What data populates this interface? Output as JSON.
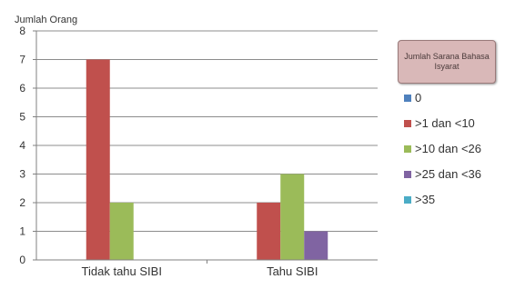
{
  "chart_data": {
    "type": "bar",
    "ylabel": "Jumlah Orang",
    "ylim": [
      0,
      8
    ],
    "yticks": [
      "0",
      "1",
      "2",
      "3",
      "4",
      "5",
      "6",
      "7",
      "8"
    ],
    "categories": [
      "Tidak tahu SIBI",
      "Tahu SIBI"
    ],
    "legend_title": "Jumlah Sarana Bahasa Isyarat",
    "legend_position": "right",
    "grid": true,
    "series": [
      {
        "name": "0",
        "color": "#4f81bd",
        "values": [
          0,
          0
        ]
      },
      {
        "name": ">1 dan <10",
        "color": "#c0504d",
        "values": [
          7,
          2
        ]
      },
      {
        "name": ">10 dan <26",
        "color": "#9bbb59",
        "values": [
          2,
          3
        ]
      },
      {
        "name": ">25 dan <36",
        "color": "#8064a2",
        "values": [
          0,
          1
        ]
      },
      {
        "name": ">35",
        "color": "#4bacc6",
        "values": [
          0,
          0
        ]
      }
    ]
  }
}
